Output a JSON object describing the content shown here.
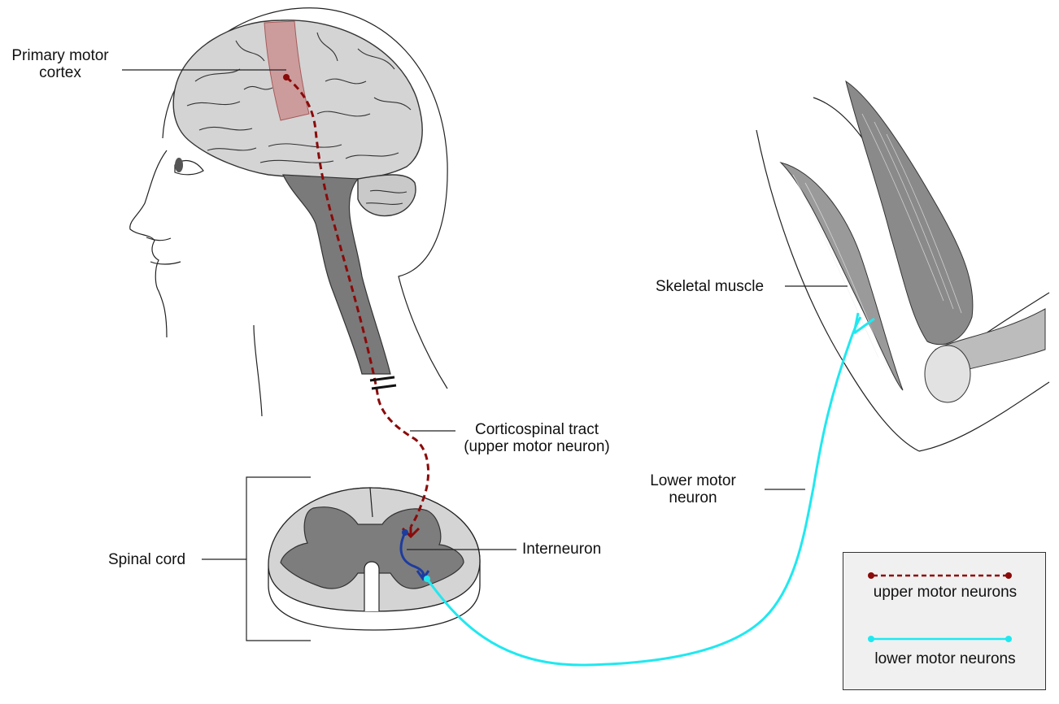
{
  "labels": {
    "motor_cortex": "Primary motor\ncortex",
    "corticospinal": "Corticospinal tract\n(upper motor neuron)",
    "spinal_cord": "Spinal cord",
    "interneuron": "Interneuron",
    "skeletal_muscle": "Skeletal muscle",
    "lower_motor_neuron": "Lower motor\nneuron"
  },
  "legend": {
    "upper": "upper motor neurons",
    "lower": "lower motor neurons"
  },
  "colors": {
    "upper_motor_neuron": "#8b0a0a",
    "lower_motor_neuron": "#20e8f0",
    "interneuron": "#1e3c9e",
    "motor_cortex_highlight": "#c98a8a",
    "brain": "#d4d4d4",
    "brainstem": "#7a7a7a",
    "gray_matter": "#7d7d7d"
  }
}
